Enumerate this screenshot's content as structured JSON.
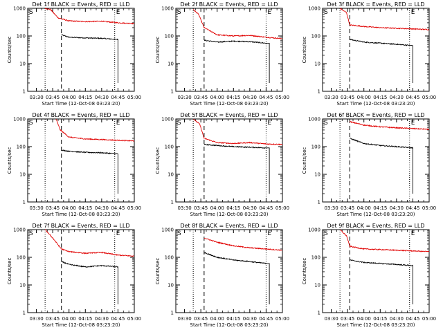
{
  "window": {
    "title": ""
  },
  "colors": {
    "events": "#000000",
    "lld": "#e00000",
    "axis": "#000000",
    "background": "#ffffff"
  },
  "chart_data": [
    {
      "type": "line",
      "title": "Det 1f BLACK = Events, RED = LLD",
      "xlabel": "Start Time (12-Oct-08 03:23:20)",
      "ylabel": "Counts/sec",
      "x_ticks": [
        "03:30",
        "03:45",
        "04:00",
        "04:15",
        "04:30",
        "04:45",
        "05:00"
      ],
      "y_ticks": [
        "1",
        "10",
        "100",
        "1000"
      ],
      "ylog": true,
      "ylim": [
        1,
        1000
      ],
      "start_marker": "S",
      "end_marker": "E",
      "markers": {
        "start_dotted": "03:38",
        "dashed": "03:53",
        "end_dotted": "04:42",
        "end_solid": "04:45"
      },
      "series": [
        {
          "name": "Events",
          "color": "#000000",
          "x": [
            "03:53",
            "04:00",
            "04:15",
            "04:30",
            "04:45"
          ],
          "y": [
            110,
            90,
            85,
            82,
            75
          ]
        },
        {
          "name": "LLD",
          "color": "#e00000",
          "x": [
            "03:38",
            "03:43",
            "03:50",
            "04:00",
            "04:15",
            "04:30",
            "04:45",
            "05:00"
          ],
          "y": [
            1000,
            900,
            450,
            350,
            330,
            340,
            300,
            280
          ]
        }
      ]
    },
    {
      "type": "line",
      "title": "Det 2f BLACK = Events, RED = LLD",
      "xlabel": "Start Time (12-Oct-08 03:23:20)",
      "ylabel": "Counts/sec",
      "x_ticks": [
        "03:30",
        "03:45",
        "04:00",
        "04:15",
        "04:30",
        "04:45",
        "05:00"
      ],
      "y_ticks": [
        "1",
        "10",
        "100",
        "1000"
      ],
      "ylog": true,
      "ylim": [
        1,
        1000
      ],
      "start_marker": "S",
      "end_marker": "E",
      "markers": {
        "start_dotted": "03:38",
        "dashed": "03:48",
        "end_dotted": "04:45",
        "end_solid": "04:48"
      },
      "series": [
        {
          "name": "Events",
          "color": "#000000",
          "x": [
            "03:48",
            "04:00",
            "04:15",
            "04:30",
            "04:45"
          ],
          "y": [
            70,
            60,
            65,
            62,
            55
          ]
        },
        {
          "name": "LLD",
          "color": "#e00000",
          "x": [
            "03:38",
            "03:43",
            "03:48",
            "04:00",
            "04:15",
            "04:30",
            "04:45",
            "05:00"
          ],
          "y": [
            900,
            600,
            200,
            110,
            100,
            105,
            90,
            80
          ]
        }
      ]
    },
    {
      "type": "line",
      "title": "Det 3f BLACK = Events, RED = LLD",
      "xlabel": "Start Time (12-Oct-08 03:23:20)",
      "ylabel": "Counts/sec",
      "x_ticks": [
        "03:30",
        "03:45",
        "04:00",
        "04:15",
        "04:30",
        "04:45",
        "05:00"
      ],
      "y_ticks": [
        "1",
        "10",
        "100",
        "1000"
      ],
      "ylog": true,
      "ylim": [
        1,
        1000
      ],
      "start_marker": "S",
      "end_marker": "E",
      "markers": {
        "start_dotted": "03:38",
        "dashed": "03:47",
        "end_dotted": "04:42",
        "end_solid": "04:45"
      },
      "series": [
        {
          "name": "Events",
          "color": "#000000",
          "x": [
            "03:47",
            "04:00",
            "04:15",
            "04:30",
            "04:45"
          ],
          "y": [
            75,
            60,
            55,
            50,
            45
          ]
        },
        {
          "name": "LLD",
          "color": "#e00000",
          "x": [
            "03:38",
            "03:44",
            "03:47",
            "04:00",
            "04:15",
            "04:30",
            "04:45",
            "05:00"
          ],
          "y": [
            1000,
            700,
            250,
            220,
            200,
            190,
            180,
            170
          ]
        }
      ]
    },
    {
      "type": "line",
      "title": "Det 4f BLACK = Events, RED = LLD",
      "xlabel": "Start Time (12-Oct-08 03:23:20)",
      "ylabel": "Counts/sec",
      "x_ticks": [
        "03:30",
        "03:45",
        "04:00",
        "04:15",
        "04:30",
        "04:45",
        "05:00"
      ],
      "y_ticks": [
        "1",
        "10",
        "100",
        "1000"
      ],
      "ylog": true,
      "ylim": [
        1,
        1000
      ],
      "start_marker": "S",
      "end_marker": "E",
      "markers": {
        "start_dotted": "03:38",
        "dashed": "03:53",
        "end_dotted": "04:42",
        "end_solid": "04:45"
      },
      "series": [
        {
          "name": "Events",
          "color": "#000000",
          "x": [
            "03:53",
            "04:00",
            "04:15",
            "04:30",
            "04:45"
          ],
          "y": [
            75,
            68,
            62,
            60,
            55
          ]
        },
        {
          "name": "LLD",
          "color": "#e00000",
          "x": [
            "03:48",
            "03:52",
            "04:00",
            "04:15",
            "04:30",
            "04:45",
            "05:00"
          ],
          "y": [
            1000,
            400,
            220,
            190,
            180,
            170,
            160
          ]
        }
      ]
    },
    {
      "type": "line",
      "title": "Det 5f BLACK = Events, RED = LLD",
      "xlabel": "Start Time (12-Oct-08 03:23:20)",
      "ylabel": "Counts/sec",
      "x_ticks": [
        "03:30",
        "03:45",
        "04:00",
        "04:15",
        "04:30",
        "04:45",
        "05:00"
      ],
      "y_ticks": [
        "1",
        "10",
        "100",
        "1000"
      ],
      "ylog": true,
      "ylim": [
        1,
        1000
      ],
      "start_marker": "S",
      "end_marker": "E",
      "markers": {
        "start_dotted": "03:38",
        "dashed": "03:48",
        "end_dotted": "04:45",
        "end_solid": "04:48"
      },
      "series": [
        {
          "name": "Events",
          "color": "#000000",
          "x": [
            "03:48",
            "04:00",
            "04:15",
            "04:30",
            "04:45"
          ],
          "y": [
            120,
            110,
            100,
            95,
            90
          ]
        },
        {
          "name": "LLD",
          "color": "#e00000",
          "x": [
            "03:38",
            "03:44",
            "03:48",
            "04:00",
            "04:15",
            "04:30",
            "04:45",
            "05:00"
          ],
          "y": [
            1000,
            650,
            200,
            140,
            130,
            140,
            125,
            120
          ]
        }
      ]
    },
    {
      "type": "line",
      "title": "Det 6f BLACK = Events, RED = LLD",
      "xlabel": "Start Time (12-Oct-08 03:23:20)",
      "ylabel": "Counts/sec",
      "x_ticks": [
        "03:30",
        "03:45",
        "04:00",
        "04:15",
        "04:30",
        "04:45",
        "05:00"
      ],
      "y_ticks": [
        "1",
        "10",
        "100",
        "1000"
      ],
      "ylog": true,
      "ylim": [
        1,
        1000
      ],
      "start_marker": "S",
      "end_marker": "E",
      "markers": {
        "start_dotted": "03:38",
        "dashed": "03:47",
        "end_dotted": "04:42",
        "end_solid": "04:45"
      },
      "series": [
        {
          "name": "Events",
          "color": "#000000",
          "x": [
            "03:47",
            "04:00",
            "04:15",
            "04:30",
            "04:45"
          ],
          "y": [
            200,
            130,
            110,
            100,
            90
          ]
        },
        {
          "name": "LLD",
          "color": "#e00000",
          "x": [
            "03:47",
            "04:00",
            "04:15",
            "04:30",
            "04:45",
            "05:00"
          ],
          "y": [
            800,
            600,
            520,
            480,
            450,
            420
          ]
        }
      ]
    },
    {
      "type": "line",
      "title": "Det 7f BLACK = Events, RED = LLD",
      "xlabel": "Start Time (12-Oct-08 03:23:20)",
      "ylabel": "Counts/sec",
      "x_ticks": [
        "03:30",
        "03:45",
        "04:00",
        "04:15",
        "04:30",
        "04:45",
        "05:00"
      ],
      "y_ticks": [
        "1",
        "10",
        "100",
        "1000"
      ],
      "ylog": true,
      "ylim": [
        1,
        1000
      ],
      "start_marker": "S",
      "end_marker": "E",
      "markers": {
        "start_dotted": "03:38",
        "dashed": "03:53",
        "end_dotted": "04:42",
        "end_solid": "04:45"
      },
      "series": [
        {
          "name": "Events",
          "color": "#000000",
          "x": [
            "03:53",
            "04:00",
            "04:15",
            "04:30",
            "04:45"
          ],
          "y": [
            70,
            55,
            45,
            50,
            45
          ]
        },
        {
          "name": "LLD",
          "color": "#e00000",
          "x": [
            "03:38",
            "03:45",
            "03:53",
            "04:00",
            "04:15",
            "04:30",
            "04:45",
            "05:00"
          ],
          "y": [
            1000,
            500,
            200,
            160,
            140,
            150,
            120,
            110
          ]
        }
      ]
    },
    {
      "type": "line",
      "title": "Det 8f BLACK = Events, RED = LLD",
      "xlabel": "Start Time (12-Oct-08 03:23:20)",
      "ylabel": "Counts/sec",
      "x_ticks": [
        "03:30",
        "03:45",
        "04:00",
        "04:15",
        "04:30",
        "04:45",
        "05:00"
      ],
      "y_ticks": [
        "1",
        "10",
        "100",
        "1000"
      ],
      "ylog": true,
      "ylim": [
        1,
        1000
      ],
      "start_marker": "S",
      "end_marker": "E",
      "markers": {
        "start_dotted": "03:38",
        "dashed": "03:48",
        "end_dotted": "04:45",
        "end_solid": "04:48"
      },
      "series": [
        {
          "name": "Events",
          "color": "#000000",
          "x": [
            "03:48",
            "04:00",
            "04:15",
            "04:30",
            "04:45"
          ],
          "y": [
            150,
            100,
            80,
            70,
            60
          ]
        },
        {
          "name": "LLD",
          "color": "#e00000",
          "x": [
            "03:48",
            "04:00",
            "04:15",
            "04:30",
            "04:45",
            "05:00"
          ],
          "y": [
            500,
            350,
            260,
            220,
            200,
            180
          ]
        }
      ]
    },
    {
      "type": "line",
      "title": "Det 9f BLACK = Events, RED = LLD",
      "xlabel": "Start Time (12-Oct-08 03:23:20)",
      "ylabel": "Counts/sec",
      "x_ticks": [
        "03:30",
        "03:45",
        "04:00",
        "04:15",
        "04:30",
        "04:45",
        "05:00"
      ],
      "y_ticks": [
        "1",
        "10",
        "100",
        "1000"
      ],
      "ylog": true,
      "ylim": [
        1,
        1000
      ],
      "start_marker": "S",
      "end_marker": "E",
      "markers": {
        "start_dotted": "03:38",
        "dashed": "03:47",
        "end_dotted": "04:42",
        "end_solid": "04:45"
      },
      "series": [
        {
          "name": "Events",
          "color": "#000000",
          "x": [
            "03:47",
            "04:00",
            "04:15",
            "04:30",
            "04:45"
          ],
          "y": [
            80,
            65,
            60,
            55,
            50
          ]
        },
        {
          "name": "LLD",
          "color": "#e00000",
          "x": [
            "03:38",
            "03:44",
            "03:47",
            "04:00",
            "04:15",
            "04:30",
            "04:45",
            "05:00"
          ],
          "y": [
            1000,
            600,
            250,
            200,
            190,
            180,
            170,
            160
          ]
        }
      ]
    }
  ]
}
